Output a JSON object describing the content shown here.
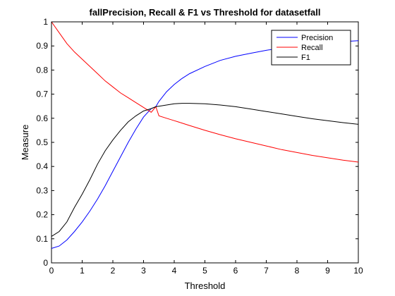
{
  "chart_data": {
    "type": "line",
    "title": "fallPrecision, Recall & F1 vs Threshold for datasetfall",
    "xlabel": "Threshold",
    "ylabel": "Measure",
    "xlim": [
      0,
      10
    ],
    "ylim": [
      0,
      1
    ],
    "x_ticks": [
      "0",
      "1",
      "2",
      "3",
      "4",
      "5",
      "6",
      "7",
      "8",
      "9",
      "10"
    ],
    "y_ticks": [
      "0",
      "0.1",
      "0.2",
      "0.3",
      "0.4",
      "0.5",
      "0.6",
      "0.7",
      "0.8",
      "0.9",
      "1"
    ],
    "grid": false,
    "legend_position": "top-right",
    "x": [
      0,
      0.25,
      0.5,
      0.75,
      1,
      1.25,
      1.5,
      1.75,
      2,
      2.25,
      2.5,
      2.75,
      3,
      3.25,
      3.4,
      3.5,
      3.75,
      4,
      4.25,
      4.5,
      5,
      5.5,
      6,
      6.5,
      7,
      7.5,
      8,
      8.5,
      9,
      9.5,
      10
    ],
    "series": [
      {
        "name": "Precision",
        "color": "#0000ff",
        "values": [
          0.06,
          0.07,
          0.095,
          0.13,
          0.17,
          0.215,
          0.265,
          0.32,
          0.38,
          0.44,
          0.5,
          0.555,
          0.605,
          0.64,
          0.648,
          0.67,
          0.71,
          0.74,
          0.765,
          0.785,
          0.815,
          0.84,
          0.857,
          0.87,
          0.882,
          0.892,
          0.9,
          0.907,
          0.913,
          0.918,
          0.922
        ]
      },
      {
        "name": "Recall",
        "color": "#ff0000",
        "values": [
          1.0,
          0.955,
          0.91,
          0.875,
          0.845,
          0.815,
          0.785,
          0.755,
          0.73,
          0.705,
          0.685,
          0.665,
          0.645,
          0.625,
          0.648,
          0.61,
          0.6,
          0.59,
          0.58,
          0.57,
          0.55,
          0.532,
          0.515,
          0.5,
          0.485,
          0.47,
          0.458,
          0.446,
          0.436,
          0.426,
          0.418
        ]
      },
      {
        "name": "F1",
        "color": "#000000",
        "values": [
          0.11,
          0.13,
          0.17,
          0.23,
          0.285,
          0.345,
          0.41,
          0.465,
          0.51,
          0.55,
          0.585,
          0.61,
          0.63,
          0.64,
          0.648,
          0.65,
          0.655,
          0.66,
          0.662,
          0.662,
          0.66,
          0.655,
          0.648,
          0.638,
          0.628,
          0.618,
          0.608,
          0.598,
          0.59,
          0.582,
          0.575
        ]
      }
    ]
  }
}
